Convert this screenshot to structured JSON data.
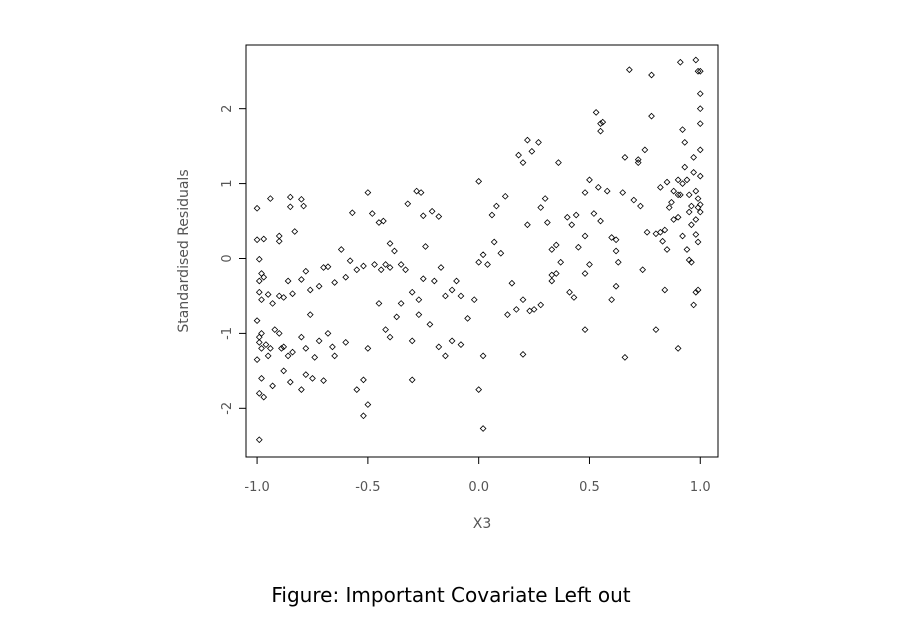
{
  "caption": "Figure: Important Covariate Left out",
  "chart_data": {
    "type": "scatter",
    "xlabel": "X3",
    "ylabel": "Standardised Residuals",
    "xlim": [
      -1.05,
      1.08
    ],
    "ylim": [
      -2.65,
      2.85
    ],
    "xticks": [
      -1.0,
      -0.5,
      0.0,
      0.5,
      1.0
    ],
    "xtick_labels": [
      "-1.0",
      "-0.5",
      "0.0",
      "0.5",
      "1.0"
    ],
    "yticks": [
      -2,
      -1,
      0,
      1,
      2
    ],
    "ytick_labels": [
      "-2",
      "-1",
      "0",
      "1",
      "2"
    ],
    "marker": "open-diamond",
    "marker_color": "#000000",
    "grid": false,
    "legend": null,
    "points": [
      [
        -1.0,
        0.67
      ],
      [
        -1.0,
        0.25
      ],
      [
        -0.97,
        0.26
      ],
      [
        -0.94,
        0.8
      ],
      [
        -0.9,
        0.23
      ],
      [
        -0.9,
        0.3
      ],
      [
        -0.85,
        0.82
      ],
      [
        -0.85,
        0.69
      ],
      [
        -0.8,
        0.79
      ],
      [
        -0.79,
        0.7
      ],
      [
        -0.83,
        0.36
      ],
      [
        -0.99,
        -0.01
      ],
      [
        -0.98,
        -0.2
      ],
      [
        -0.97,
        -0.25
      ],
      [
        -0.99,
        -0.3
      ],
      [
        -0.99,
        -0.45
      ],
      [
        -0.98,
        -0.55
      ],
      [
        -0.95,
        -0.48
      ],
      [
        -0.93,
        -0.6
      ],
      [
        -0.9,
        -0.5
      ],
      [
        -0.88,
        -0.52
      ],
      [
        -0.86,
        -0.3
      ],
      [
        -0.84,
        -0.47
      ],
      [
        -0.8,
        -0.28
      ],
      [
        -0.78,
        -0.17
      ],
      [
        -0.76,
        -0.42
      ],
      [
        -0.72,
        -0.37
      ],
      [
        -0.7,
        -0.12
      ],
      [
        -0.68,
        -0.11
      ],
      [
        -0.65,
        -0.32
      ],
      [
        -0.6,
        -0.25
      ],
      [
        -0.58,
        -0.03
      ],
      [
        -0.55,
        -0.15
      ],
      [
        -0.52,
        -0.1
      ],
      [
        -0.62,
        0.12
      ],
      [
        -0.57,
        0.61
      ],
      [
        -1.0,
        -0.83
      ],
      [
        -0.99,
        -1.05
      ],
      [
        -0.98,
        -1.0
      ],
      [
        -0.99,
        -1.12
      ],
      [
        -0.98,
        -1.2
      ],
      [
        -0.96,
        -1.15
      ],
      [
        -0.95,
        -1.3
      ],
      [
        -0.94,
        -1.2
      ],
      [
        -0.92,
        -0.95
      ],
      [
        -0.9,
        -1.0
      ],
      [
        -0.89,
        -1.2
      ],
      [
        -0.88,
        -1.18
      ],
      [
        -0.86,
        -1.3
      ],
      [
        -0.84,
        -1.25
      ],
      [
        -0.8,
        -1.05
      ],
      [
        -0.78,
        -1.2
      ],
      [
        -0.76,
        -0.75
      ],
      [
        -0.74,
        -1.32
      ],
      [
        -0.72,
        -1.1
      ],
      [
        -0.68,
        -1.0
      ],
      [
        -0.66,
        -1.18
      ],
      [
        -0.65,
        -1.3
      ],
      [
        -0.6,
        -1.12
      ],
      [
        -1.0,
        -1.35
      ],
      [
        -0.98,
        -1.6
      ],
      [
        -0.99,
        -1.8
      ],
      [
        -0.97,
        -1.85
      ],
      [
        -0.93,
        -1.7
      ],
      [
        -0.88,
        -1.5
      ],
      [
        -0.85,
        -1.65
      ],
      [
        -0.8,
        -1.75
      ],
      [
        -0.78,
        -1.55
      ],
      [
        -0.75,
        -1.6
      ],
      [
        -0.7,
        -1.63
      ],
      [
        -0.99,
        -2.42
      ],
      [
        -0.5,
        0.88
      ],
      [
        -0.48,
        0.6
      ],
      [
        -0.45,
        0.48
      ],
      [
        -0.43,
        0.5
      ],
      [
        -0.4,
        0.2
      ],
      [
        -0.38,
        0.1
      ],
      [
        -0.32,
        0.73
      ],
      [
        -0.28,
        0.9
      ],
      [
        -0.26,
        0.88
      ],
      [
        -0.25,
        0.57
      ],
      [
        -0.21,
        0.63
      ],
      [
        -0.18,
        0.56
      ],
      [
        -0.24,
        0.16
      ],
      [
        -0.47,
        -0.08
      ],
      [
        -0.44,
        -0.15
      ],
      [
        -0.42,
        -0.08
      ],
      [
        -0.4,
        -0.12
      ],
      [
        -0.35,
        -0.08
      ],
      [
        -0.33,
        -0.15
      ],
      [
        -0.3,
        -0.45
      ],
      [
        -0.27,
        -0.55
      ],
      [
        -0.25,
        -0.27
      ],
      [
        -0.2,
        -0.3
      ],
      [
        -0.17,
        -0.12
      ],
      [
        -0.15,
        -0.5
      ],
      [
        -0.12,
        -0.42
      ],
      [
        -0.1,
        -0.3
      ],
      [
        -0.08,
        -0.5
      ],
      [
        -0.45,
        -0.6
      ],
      [
        -0.42,
        -0.95
      ],
      [
        -0.4,
        -1.05
      ],
      [
        -0.37,
        -0.78
      ],
      [
        -0.35,
        -0.6
      ],
      [
        -0.3,
        -1.1
      ],
      [
        -0.27,
        -0.75
      ],
      [
        -0.22,
        -0.88
      ],
      [
        -0.18,
        -1.18
      ],
      [
        -0.15,
        -1.3
      ],
      [
        -0.12,
        -1.1
      ],
      [
        -0.08,
        -1.15
      ],
      [
        -0.05,
        -0.8
      ],
      [
        -0.5,
        -1.2
      ],
      [
        -0.52,
        -1.62
      ],
      [
        -0.55,
        -1.75
      ],
      [
        -0.5,
        -1.95
      ],
      [
        -0.52,
        -2.1
      ],
      [
        -0.3,
        -1.62
      ],
      [
        0.0,
        1.03
      ],
      [
        0.02,
        0.05
      ],
      [
        0.04,
        -0.08
      ],
      [
        0.07,
        0.22
      ],
      [
        0.08,
        0.7
      ],
      [
        0.06,
        0.58
      ],
      [
        0.1,
        0.07
      ],
      [
        0.12,
        0.83
      ],
      [
        -0.02,
        -0.55
      ],
      [
        0.0,
        -0.05
      ],
      [
        0.02,
        -1.3
      ],
      [
        0.0,
        -1.75
      ],
      [
        0.02,
        -2.27
      ],
      [
        0.13,
        -0.75
      ],
      [
        0.15,
        -0.33
      ],
      [
        0.17,
        -0.68
      ],
      [
        0.2,
        -0.55
      ],
      [
        0.2,
        -1.28
      ],
      [
        0.18,
        1.38
      ],
      [
        0.2,
        1.28
      ],
      [
        0.22,
        1.58
      ],
      [
        0.24,
        1.43
      ],
      [
        0.27,
        1.55
      ],
      [
        0.3,
        0.8
      ],
      [
        0.28,
        0.68
      ],
      [
        0.31,
        0.48
      ],
      [
        0.33,
        0.12
      ],
      [
        0.35,
        0.18
      ],
      [
        0.36,
        1.28
      ],
      [
        0.37,
        -0.05
      ],
      [
        0.33,
        -0.22
      ],
      [
        0.33,
        -0.3
      ],
      [
        0.35,
        -0.2
      ],
      [
        0.28,
        -0.62
      ],
      [
        0.25,
        -0.68
      ],
      [
        0.23,
        -0.7
      ],
      [
        0.22,
        0.45
      ],
      [
        0.4,
        0.55
      ],
      [
        0.42,
        0.45
      ],
      [
        0.44,
        0.58
      ],
      [
        0.45,
        0.15
      ],
      [
        0.48,
        0.3
      ],
      [
        0.5,
        1.05
      ],
      [
        0.48,
        0.88
      ],
      [
        0.52,
        0.6
      ],
      [
        0.54,
        0.95
      ],
      [
        0.55,
        0.5
      ],
      [
        0.41,
        -0.45
      ],
      [
        0.43,
        -0.52
      ],
      [
        0.48,
        -0.2
      ],
      [
        0.5,
        -0.08
      ],
      [
        0.48,
        -0.95
      ],
      [
        0.53,
        1.95
      ],
      [
        0.55,
        1.8
      ],
      [
        0.56,
        1.82
      ],
      [
        0.55,
        1.7
      ],
      [
        0.58,
        0.9
      ],
      [
        0.6,
        0.28
      ],
      [
        0.62,
        0.25
      ],
      [
        0.62,
        0.1
      ],
      [
        0.63,
        -0.05
      ],
      [
        0.6,
        -0.55
      ],
      [
        0.62,
        -0.37
      ],
      [
        0.65,
        0.88
      ],
      [
        0.66,
        1.35
      ],
      [
        0.68,
        2.52
      ],
      [
        0.7,
        0.78
      ],
      [
        0.72,
        1.28
      ],
      [
        0.72,
        1.32
      ],
      [
        0.73,
        0.7
      ],
      [
        0.74,
        -0.15
      ],
      [
        0.66,
        -1.32
      ],
      [
        0.75,
        1.45
      ],
      [
        0.78,
        2.45
      ],
      [
        0.78,
        1.9
      ],
      [
        0.76,
        0.35
      ],
      [
        0.8,
        0.33
      ],
      [
        0.82,
        0.35
      ],
      [
        0.84,
        0.38
      ],
      [
        0.82,
        0.95
      ],
      [
        0.85,
        1.02
      ],
      [
        0.86,
        0.68
      ],
      [
        0.83,
        0.23
      ],
      [
        0.85,
        0.12
      ],
      [
        0.8,
        -0.95
      ],
      [
        0.84,
        -0.42
      ],
      [
        0.87,
        0.75
      ],
      [
        0.88,
        0.9
      ],
      [
        0.9,
        1.05
      ],
      [
        0.9,
        0.55
      ],
      [
        0.91,
        0.85
      ],
      [
        0.92,
        1.0
      ],
      [
        0.93,
        1.22
      ],
      [
        0.93,
        1.55
      ],
      [
        0.94,
        1.05
      ],
      [
        0.95,
        0.85
      ],
      [
        0.95,
        0.62
      ],
      [
        0.96,
        0.45
      ],
      [
        0.96,
        0.7
      ],
      [
        0.97,
        1.15
      ],
      [
        0.97,
        1.35
      ],
      [
        0.98,
        0.9
      ],
      [
        0.98,
        0.52
      ],
      [
        0.98,
        0.32
      ],
      [
        0.99,
        0.22
      ],
      [
        0.99,
        0.68
      ],
      [
        0.99,
        0.8
      ],
      [
        1.0,
        0.72
      ],
      [
        1.0,
        0.62
      ],
      [
        1.0,
        1.1
      ],
      [
        1.0,
        1.45
      ],
      [
        1.0,
        1.8
      ],
      [
        1.0,
        2.0
      ],
      [
        1.0,
        2.2
      ],
      [
        0.99,
        2.5
      ],
      [
        1.0,
        2.5
      ],
      [
        0.98,
        2.65
      ],
      [
        0.91,
        2.62
      ],
      [
        0.92,
        1.72
      ],
      [
        0.9,
        0.85
      ],
      [
        0.88,
        0.52
      ],
      [
        0.92,
        0.3
      ],
      [
        0.95,
        -0.02
      ],
      [
        0.96,
        -0.05
      ],
      [
        0.98,
        -0.45
      ],
      [
        0.99,
        -0.42
      ],
      [
        0.97,
        -0.62
      ],
      [
        0.9,
        -1.2
      ],
      [
        0.94,
        0.12
      ]
    ]
  }
}
